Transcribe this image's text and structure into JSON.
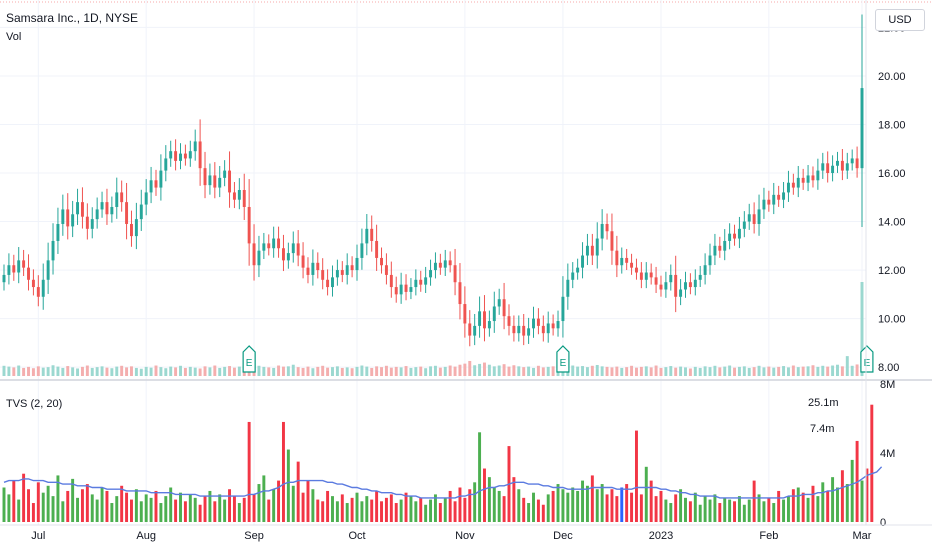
{
  "header": {
    "symbol": "Samsara Inc., 1D, NYSE",
    "volume_label": "Vol",
    "currency": "USD"
  },
  "indicator": {
    "label": "TVS (2, 20)",
    "annotations": [
      "25.1m",
      "7.4m"
    ]
  },
  "colors": {
    "up": "#26a69a",
    "down": "#ef5350",
    "volume_up": "#9bd8d0",
    "volume_down": "#f4aeae",
    "tvs_up": "#4caf50",
    "tvs_down": "#f23645",
    "tvs_highlight": "#2962ff",
    "ma_line": "#5b7be0",
    "earnings": "#089981",
    "grid": "#f0f3fa"
  },
  "chart_data": [
    {
      "type": "candlestick",
      "title": "Samsara Inc., 1D, NYSE",
      "ylim": [
        7.8,
        22.8
      ],
      "y_ticks": [
        "22.00",
        "20.00",
        "18.00",
        "16.00",
        "14.00",
        "12.00",
        "10.00",
        "8.00"
      ],
      "x_ticks": [
        "Jul",
        "Aug",
        "Sep",
        "Oct",
        "Nov",
        "Dec",
        "2023",
        "Feb",
        "Mar"
      ],
      "x_tick_index": [
        7,
        29,
        51,
        72,
        94,
        114,
        134,
        156,
        175
      ],
      "earnings_markers": [
        "E",
        "E",
        "E"
      ],
      "earnings_index": [
        50,
        114,
        176
      ],
      "close": [
        11.8,
        12.2,
        11.9,
        12.4,
        12.1,
        11.6,
        11.3,
        10.9,
        11.6,
        12.4,
        13.2,
        13.9,
        14.5,
        13.8,
        14.3,
        14.8,
        14.2,
        13.7,
        14.1,
        14.5,
        14.8,
        14.3,
        14.6,
        15.2,
        14.8,
        13.9,
        13.4,
        14.1,
        14.7,
        15.2,
        15.7,
        15.4,
        16.1,
        16.6,
        16.9,
        16.5,
        16.8,
        16.6,
        16.9,
        17.3,
        16.2,
        15.5,
        15.9,
        15.4,
        15.8,
        16.1,
        15.2,
        14.9,
        15.3,
        14.6,
        13.1,
        12.2,
        12.8,
        13.1,
        12.9,
        13.3,
        12.9,
        12.4,
        12.7,
        13.1,
        12.6,
        12.1,
        11.8,
        12.3,
        12.0,
        11.6,
        11.3,
        11.7,
        12.0,
        11.8,
        12.2,
        12.0,
        12.5,
        13.1,
        13.7,
        13.2,
        12.5,
        12.2,
        11.8,
        11.3,
        11.0,
        11.4,
        11.1,
        11.3,
        11.6,
        11.4,
        11.7,
        12.0,
        12.3,
        12.1,
        12.4,
        12.2,
        11.5,
        10.6,
        9.8,
        9.3,
        9.7,
        10.3,
        9.6,
        9.9,
        10.5,
        10.8,
        10.1,
        9.7,
        9.4,
        9.7,
        9.3,
        9.6,
        10.0,
        9.7,
        9.4,
        9.8,
        9.6,
        9.9,
        10.9,
        11.6,
        11.9,
        12.1,
        12.6,
        13.0,
        12.6,
        13.3,
        13.9,
        13.6,
        12.8,
        12.2,
        12.5,
        12.3,
        12.1,
        11.9,
        11.6,
        11.9,
        11.7,
        11.4,
        11.2,
        11.5,
        11.8,
        10.9,
        11.2,
        11.5,
        11.3,
        11.6,
        11.8,
        12.2,
        12.6,
        13.0,
        12.8,
        13.2,
        13.5,
        13.3,
        13.7,
        14.0,
        14.3,
        13.9,
        14.5,
        14.9,
        14.7,
        15.1,
        14.9,
        15.2,
        15.6,
        15.4,
        15.8,
        15.6,
        15.9,
        15.7,
        16.1,
        16.4,
        16.0,
        16.3,
        16.5,
        16.1,
        16.4,
        16.6,
        16.2,
        19.5
      ],
      "volume": [
        3.8,
        3.5,
        3.2,
        3.9,
        3.0,
        3.4,
        2.9,
        3.6,
        3.1,
        3.3,
        4.0,
        3.5,
        3.0,
        3.7,
        3.2,
        2.8,
        3.4,
        3.9,
        3.0,
        3.3,
        3.6,
        3.1,
        2.9,
        3.5,
        3.8,
        3.2,
        3.6,
        3.0,
        2.7,
        3.4,
        3.1,
        3.9,
        3.3,
        2.9,
        3.5,
        3.2,
        3.8,
        3.0,
        3.4,
        3.1,
        2.8,
        3.6,
        3.2,
        3.9,
        3.0,
        3.4,
        3.7,
        3.1,
        3.5,
        3.3,
        2.6,
        4.3,
        3.8,
        3.4,
        3.2,
        3.0,
        3.9,
        3.5,
        3.6,
        4.2,
        3.3,
        3.0,
        3.5,
        2.9,
        3.4,
        3.8,
        3.1,
        3.3,
        3.6,
        3.0,
        3.2,
        2.9,
        3.4,
        3.9,
        3.5,
        3.0,
        3.6,
        3.3,
        3.8,
        3.1,
        3.4,
        3.2,
        3.7,
        3.0,
        3.3,
        3.5,
        2.9,
        3.6,
        3.8,
        3.1,
        3.4,
        3.9,
        3.5,
        4.2,
        4.6,
        5.6,
        4.0,
        4.5,
        5.0,
        4.2,
        3.6,
        3.9,
        4.4,
        3.5,
        4.0,
        3.6,
        3.3,
        3.5,
        3.0,
        3.8,
        3.2,
        3.4,
        3.6,
        3.1,
        4.5,
        5.0,
        3.9,
        3.5,
        3.7,
        3.3,
        3.8,
        4.1,
        3.6,
        3.4,
        3.2,
        3.5,
        3.0,
        3.3,
        3.8,
        3.1,
        3.4,
        3.6,
        3.2,
        3.9,
        3.0,
        3.3,
        3.7,
        3.1,
        3.5,
        3.2,
        2.8,
        3.4,
        3.0,
        3.6,
        3.3,
        3.8,
        3.2,
        3.5,
        3.9,
        3.1,
        3.4,
        3.6,
        3.0,
        3.3,
        3.8,
        3.2,
        3.5,
        3.1,
        3.4,
        3.7,
        3.2,
        3.9,
        3.3,
        3.5,
        3.6,
        4.0,
        3.4,
        3.8,
        3.5,
        3.9,
        4.2,
        3.6,
        7.4,
        3.8,
        4.3,
        25.1
      ]
    },
    {
      "type": "bar",
      "title": "TVS (2, 20)",
      "ylim": [
        0,
        8
      ],
      "y_ticks": [
        "0",
        "4M",
        "8M"
      ],
      "highlight_index": [
        126
      ],
      "values": [
        2.0,
        1.6,
        2.4,
        1.3,
        2.8,
        1.9,
        1.1,
        2.3,
        1.7,
        2.1,
        1.5,
        2.7,
        1.2,
        1.8,
        2.5,
        1.4,
        1.9,
        2.2,
        1.6,
        1.3,
        2.0,
        1.8,
        1.1,
        1.5,
        2.1,
        1.7,
        1.3,
        1.9,
        1.2,
        1.6,
        1.4,
        1.8,
        1.1,
        1.5,
        2.0,
        1.3,
        1.7,
        1.2,
        1.6,
        1.4,
        1.0,
        1.5,
        1.8,
        1.2,
        1.6,
        1.3,
        1.9,
        1.5,
        1.1,
        1.4,
        5.8,
        1.6,
        2.2,
        2.7,
        1.3,
        1.9,
        2.4,
        5.8,
        4.2,
        2.1,
        3.5,
        1.7,
        2.4,
        1.9,
        1.3,
        1.2,
        1.8,
        1.5,
        1.2,
        1.6,
        1.1,
        1.4,
        1.7,
        1.2,
        1.5,
        1.3,
        1.8,
        1.2,
        1.4,
        1.6,
        1.1,
        1.3,
        1.7,
        1.5,
        1.2,
        1.4,
        1.0,
        1.3,
        1.6,
        1.1,
        1.4,
        1.8,
        1.2,
        2.0,
        1.4,
        1.9,
        2.3,
        5.2,
        3.1,
        2.6,
        2.0,
        1.8,
        1.5,
        4.4,
        2.6,
        1.9,
        1.4,
        1.1,
        1.7,
        1.3,
        1.0,
        1.6,
        1.8,
        2.2,
        1.9,
        1.7,
        2.0,
        1.8,
        2.4,
        2.1,
        2.7,
        1.9,
        2.2,
        1.6,
        1.9,
        1.5,
        2.0,
        2.2,
        1.7,
        5.3,
        1.6,
        3.2,
        2.4,
        1.5,
        1.8,
        1.3,
        1.1,
        1.6,
        1.9,
        1.4,
        1.2,
        1.7,
        1.0,
        1.5,
        1.3,
        1.6,
        1.1,
        1.4,
        1.3,
        1.2,
        1.5,
        1.0,
        1.3,
        2.4,
        1.6,
        1.2,
        1.4,
        1.1,
        1.8,
        1.3,
        1.5,
        1.9,
        2.0,
        1.7,
        1.4,
        2.1,
        1.5,
        2.3,
        1.8,
        2.6,
        2.0,
        3.0,
        2.2,
        3.6,
        4.7,
        2.4,
        3.1,
        6.8
      ],
      "ma_values": [
        2.3,
        2.4,
        2.4,
        2.4,
        2.5,
        2.5,
        2.4,
        2.4,
        2.4,
        2.3,
        2.3,
        2.3,
        2.2,
        2.2,
        2.2,
        2.1,
        2.1,
        2.1,
        2.0,
        2.0,
        2.0,
        1.9,
        1.9,
        1.9,
        1.9,
        1.8,
        1.8,
        1.8,
        1.8,
        1.8,
        1.7,
        1.7,
        1.7,
        1.7,
        1.7,
        1.6,
        1.6,
        1.6,
        1.6,
        1.6,
        1.5,
        1.5,
        1.5,
        1.5,
        1.5,
        1.5,
        1.5,
        1.5,
        1.5,
        1.5,
        1.6,
        1.6,
        1.7,
        1.8,
        1.8,
        1.9,
        2.0,
        2.2,
        2.3,
        2.3,
        2.4,
        2.4,
        2.4,
        2.4,
        2.4,
        2.4,
        2.3,
        2.3,
        2.2,
        2.2,
        2.1,
        2.0,
        2.0,
        1.9,
        1.9,
        1.8,
        1.8,
        1.7,
        1.7,
        1.7,
        1.6,
        1.6,
        1.5,
        1.5,
        1.5,
        1.4,
        1.4,
        1.4,
        1.4,
        1.4,
        1.4,
        1.4,
        1.4,
        1.5,
        1.5,
        1.6,
        1.6,
        1.8,
        1.9,
        2.0,
        2.0,
        2.1,
        2.1,
        2.2,
        2.3,
        2.3,
        2.3,
        2.2,
        2.2,
        2.2,
        2.1,
        2.1,
        2.0,
        2.0,
        2.0,
        1.9,
        1.9,
        1.9,
        1.9,
        1.9,
        2.0,
        2.0,
        2.0,
        2.0,
        2.0,
        1.9,
        1.9,
        1.9,
        1.9,
        2.0,
        2.0,
        2.0,
        2.0,
        2.0,
        1.9,
        1.9,
        1.8,
        1.8,
        1.7,
        1.7,
        1.6,
        1.6,
        1.5,
        1.5,
        1.5,
        1.5,
        1.4,
        1.4,
        1.4,
        1.4,
        1.4,
        1.4,
        1.4,
        1.4,
        1.4,
        1.4,
        1.4,
        1.4,
        1.4,
        1.4,
        1.5,
        1.5,
        1.5,
        1.6,
        1.6,
        1.6,
        1.7,
        1.7,
        1.8,
        1.8,
        1.9,
        2.0,
        2.1,
        2.2,
        2.3,
        2.5,
        2.7,
        2.8,
        2.9,
        3.2
      ]
    }
  ]
}
